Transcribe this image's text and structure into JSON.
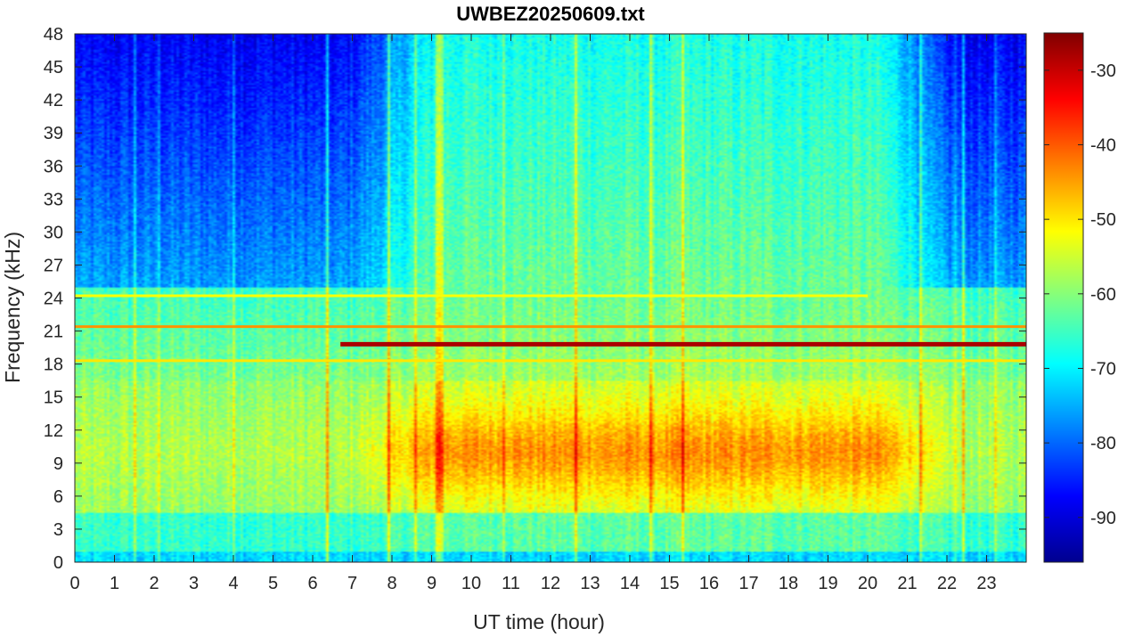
{
  "chart_data": {
    "type": "heatmap",
    "title": "UWBEZ20250609.txt",
    "xlabel": "UT time (hour)",
    "ylabel": "Frequency (kHz)",
    "xlim": [
      0,
      24
    ],
    "ylim": [
      0,
      48
    ],
    "x_ticks": [
      0,
      1,
      2,
      3,
      4,
      5,
      6,
      7,
      8,
      9,
      10,
      11,
      12,
      13,
      14,
      15,
      16,
      17,
      18,
      19,
      20,
      21,
      22,
      23
    ],
    "y_ticks": [
      0,
      3,
      6,
      9,
      12,
      15,
      18,
      21,
      24,
      27,
      30,
      33,
      36,
      39,
      42,
      45,
      48
    ],
    "colorbar": {
      "colormap": "jet",
      "range": [
        -96,
        -25
      ],
      "ticks": [
        -30,
        -40,
        -50,
        -60,
        -70,
        -80,
        -90
      ]
    },
    "colormap_stops": [
      "#00008f",
      "#0000ff",
      "#0080ff",
      "#00ffff",
      "#80ff80",
      "#ffff00",
      "#ff8000",
      "#ff0000",
      "#800000"
    ],
    "features": [
      {
        "name": "persistent narrowband line",
        "freq_khz": 19.8,
        "start_hour": 6.7,
        "end_hour": 24,
        "level_db": -28
      },
      {
        "name": "narrowband line",
        "freq_khz": 21.4,
        "start_hour": 0,
        "end_hour": 24,
        "level_db": -44
      },
      {
        "name": "narrowband line",
        "freq_khz": 18.3,
        "start_hour": 0,
        "end_hour": 24,
        "level_db": -50
      },
      {
        "name": "narrowband line",
        "freq_khz": 24.2,
        "start_hour": 0,
        "end_hour": 20,
        "level_db": -52
      },
      {
        "name": "broadband daytime emission",
        "freq_khz_range": [
          6,
          15
        ],
        "hour_range": [
          8.5,
          20.5
        ],
        "level_db": -45
      }
    ]
  }
}
